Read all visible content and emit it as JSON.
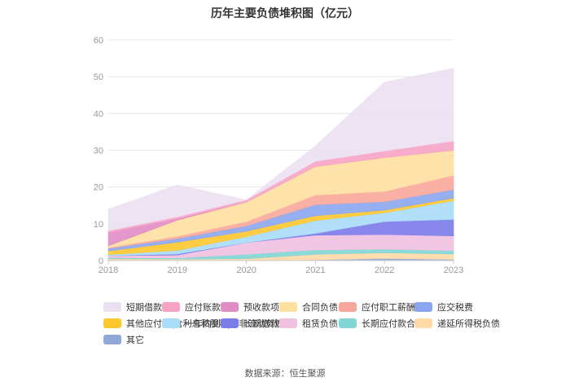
{
  "chart_data": {
    "type": "area",
    "stacked": true,
    "title": "历年主要负债堆积图（亿元）",
    "categories": [
      "2018",
      "2019",
      "2020",
      "2021",
      "2022",
      "2023"
    ],
    "ylim": [
      0,
      60
    ],
    "yticks": [
      0,
      10,
      20,
      30,
      40,
      50,
      60
    ],
    "grid": true,
    "legend_position": "bottom",
    "series": [
      {
        "name": "其它",
        "color": "#8fa8d8",
        "values": [
          0.2,
          0.1,
          0.1,
          0.2,
          0.6,
          0.3
        ]
      },
      {
        "name": "递延所得税负债",
        "color": "#ffd9a6",
        "values": [
          0.3,
          0.3,
          0.4,
          1.5,
          1.5,
          1.5
        ]
      },
      {
        "name": "长期应付款合计",
        "color": "#7fd6d4",
        "values": [
          0.3,
          0.3,
          1.2,
          1.2,
          1.0,
          0.9
        ]
      },
      {
        "name": "租赁负债",
        "color": "#f0c0e0",
        "values": [
          0.5,
          0.8,
          3.2,
          4.0,
          4.0,
          4.0
        ]
      },
      {
        "name": "长期借款",
        "color": "#7b7bea",
        "values": [
          0,
          0.3,
          0,
          0.5,
          3.5,
          4.5
        ]
      },
      {
        "name": "一年内到期的非流动负债",
        "color": "#a9dcf8",
        "values": [
          0.3,
          1.0,
          1.6,
          3.5,
          2.4,
          5.1
        ]
      },
      {
        "name": "其他应付款(含利息和股利)",
        "color": "#ffc72e",
        "values": [
          1.0,
          2.2,
          1.5,
          1.3,
          0.7,
          0.7
        ]
      },
      {
        "name": "应交税费",
        "color": "#8aa6f0",
        "values": [
          0.7,
          1.0,
          1.4,
          3.0,
          2.3,
          2.3
        ]
      },
      {
        "name": "应付职工薪酬",
        "color": "#f9a79a",
        "values": [
          0.2,
          0.6,
          1.2,
          2.6,
          2.8,
          3.9
        ]
      },
      {
        "name": "合同负债",
        "color": "#ffdfa0",
        "values": [
          0.5,
          4.4,
          5.3,
          7.8,
          9.2,
          6.8
        ]
      },
      {
        "name": "预收款项",
        "color": "#e08cc5",
        "values": [
          3.6,
          0.4,
          0,
          0,
          0,
          0
        ]
      },
      {
        "name": "应付账款",
        "color": "#f7a3c5",
        "values": [
          0.5,
          0.5,
          0.6,
          1.4,
          1.8,
          2.5
        ]
      },
      {
        "name": "短期借款",
        "color": "#ebe0f2",
        "values": [
          5.9,
          8.7,
          0,
          4.2,
          18.7,
          19.8
        ]
      }
    ]
  },
  "legend_order": [
    "短期借款",
    "应付账款",
    "预收款项",
    "合同负债",
    "应付职工薪酬",
    "应交税费",
    "其他应付款(含利息和股利)",
    "一年内到期的非流动负债",
    "长期借款",
    "租赁负债",
    "长期应付款合计",
    "递延所得税负债",
    "其它"
  ],
  "source": "数据来源：恒生聚源"
}
